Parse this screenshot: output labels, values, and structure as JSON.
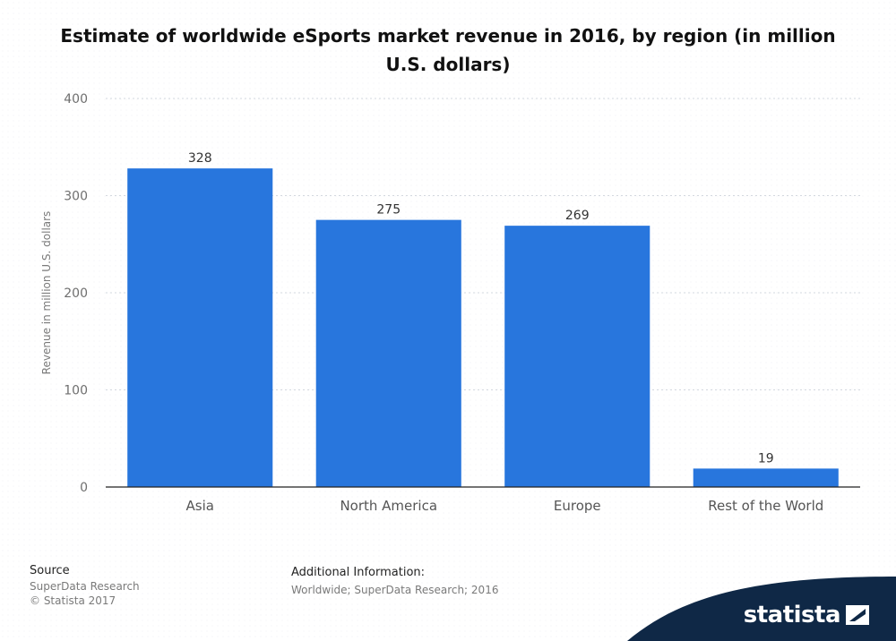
{
  "chart_data": {
    "type": "bar",
    "title": "Estimate of worldwide eSports market revenue in 2016, by region (in million U.S. dollars)",
    "xlabel": "",
    "ylabel": "Revenue in million U.S. dollars",
    "categories": [
      "Asia",
      "North America",
      "Europe",
      "Rest of the World"
    ],
    "values": [
      328,
      275,
      269,
      19
    ],
    "data_labels": [
      "328",
      "275",
      "269",
      "19"
    ],
    "y_ticks": [
      0,
      100,
      200,
      300,
      400
    ],
    "y_tick_labels": [
      "0",
      "100",
      "200",
      "300",
      "400"
    ],
    "ylim": [
      0,
      400
    ],
    "grid": true,
    "legend": "none",
    "bar_color": "#2876dd"
  },
  "footer": {
    "source_heading": "Source",
    "source_lines": [
      "SuperData Research",
      "© Statista 2017"
    ],
    "additional_heading": "Additional Information:",
    "additional_text": "Worldwide; SuperData Research; 2016",
    "brand": "statista",
    "brand_color": "#0f2846"
  }
}
